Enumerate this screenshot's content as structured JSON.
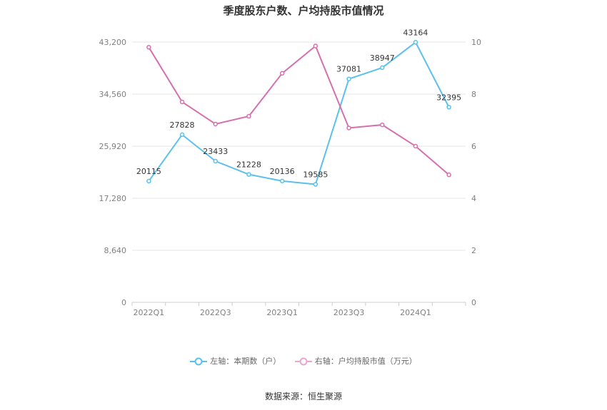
{
  "chart_data": {
    "type": "line",
    "title": "季度股东户数、户均持股市值情况",
    "x": [
      "2022Q1",
      "2022Q2",
      "2022Q3",
      "2022Q4",
      "2023Q1",
      "2023Q2",
      "2023Q3",
      "2023Q4",
      "2024Q1",
      "2024Q2"
    ],
    "x_tick_labels": [
      "2022Q1",
      "",
      "2022Q3",
      "",
      "2023Q1",
      "",
      "2023Q3",
      "",
      "2024Q1",
      ""
    ],
    "left_axis": {
      "ylim": [
        0,
        43200
      ],
      "ticks": [
        "0",
        "8,640",
        "17,280",
        "25,920",
        "34,560",
        "43,200"
      ],
      "tick_values": [
        0,
        8640,
        17280,
        25920,
        34560,
        43200
      ]
    },
    "right_axis": {
      "ylim": [
        0,
        10
      ],
      "ticks": [
        "0",
        "2",
        "4",
        "6",
        "8",
        "10"
      ],
      "tick_values": [
        0,
        2,
        4,
        6,
        8,
        10
      ]
    },
    "series": [
      {
        "name": "左轴：本期数（户）",
        "axis": "left",
        "color": "#5bc0eb",
        "values": [
          20115,
          27828,
          23433,
          21228,
          20136,
          19585,
          37081,
          38947,
          43164,
          32395
        ],
        "labels": [
          "20115",
          "27828",
          "23433",
          "21228",
          "20136",
          "19585",
          "37081",
          "38947",
          "43164",
          "32395"
        ]
      },
      {
        "name": "右轴：户均持股市值（万元）",
        "axis": "right",
        "color": "#d66fb0",
        "values": [
          9.8,
          7.7,
          6.85,
          7.15,
          8.8,
          9.85,
          6.7,
          6.82,
          6.0,
          4.9
        ]
      }
    ],
    "legend": "bottom-center",
    "grid": true
  },
  "source": "数据来源：恒生聚源"
}
